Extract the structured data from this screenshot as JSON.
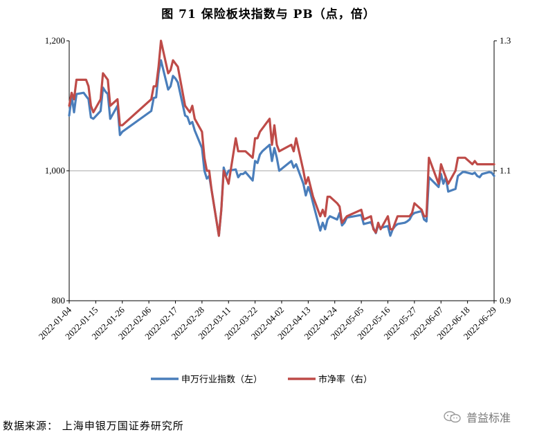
{
  "title": "图 71  保险板块指数与 PB（点，倍）",
  "source": "数据来源：   上海申银万国证券研究所",
  "watermark": "普益标准",
  "colors": {
    "index": "#4a7ebb",
    "pb": "#be4b48"
  },
  "chart_data": {
    "type": "line",
    "x_tick_labels": [
      "2022-01-04",
      "2022-01-15",
      "2022-01-26",
      "2022-02-06",
      "2022-02-17",
      "2022-02-28",
      "2022-03-11",
      "2022-03-22",
      "2022-04-02",
      "2022-04-13",
      "2022-04-24",
      "2022-05-05",
      "2022-05-16",
      "2022-05-27",
      "2022-06-07",
      "2022-06-18",
      "2022-06-29"
    ],
    "y_left": {
      "ticks": [
        "800",
        "1,000",
        "1,200"
      ],
      "range": [
        800,
        1200
      ]
    },
    "y_right": {
      "ticks": [
        "0.9",
        "1.1",
        "1.3"
      ],
      "range": [
        0.9,
        1.3
      ]
    },
    "grid_values": [
      1000
    ],
    "legend_position": "bottom",
    "series": [
      {
        "name": "申万行业指数（左）",
        "axis": "left",
        "color": "#4a7ebb",
        "points": [
          [
            "2022-01-04",
            1085
          ],
          [
            "2022-01-05",
            1115
          ],
          [
            "2022-01-06",
            1090
          ],
          [
            "2022-01-07",
            1118
          ],
          [
            "2022-01-10",
            1120
          ],
          [
            "2022-01-11",
            1115
          ],
          [
            "2022-01-12",
            1110
          ],
          [
            "2022-01-13",
            1082
          ],
          [
            "2022-01-14",
            1080
          ],
          [
            "2022-01-17",
            1092
          ],
          [
            "2022-01-18",
            1128
          ],
          [
            "2022-01-19",
            1122
          ],
          [
            "2022-01-20",
            1118
          ],
          [
            "2022-01-21",
            1080
          ],
          [
            "2022-01-24",
            1100
          ],
          [
            "2022-01-25",
            1055
          ],
          [
            "2022-01-26",
            1060
          ],
          [
            "2022-02-07",
            1092
          ],
          [
            "2022-02-08",
            1112
          ],
          [
            "2022-02-09",
            1113
          ],
          [
            "2022-02-10",
            1150
          ],
          [
            "2022-02-11",
            1170
          ],
          [
            "2022-02-14",
            1125
          ],
          [
            "2022-02-15",
            1130
          ],
          [
            "2022-02-16",
            1146
          ],
          [
            "2022-02-17",
            1142
          ],
          [
            "2022-02-18",
            1136
          ],
          [
            "2022-02-21",
            1085
          ],
          [
            "2022-02-22",
            1083
          ],
          [
            "2022-02-23",
            1072
          ],
          [
            "2022-02-24",
            1075
          ],
          [
            "2022-02-25",
            1062
          ],
          [
            "2022-02-28",
            1035
          ],
          [
            "2022-03-01",
            1000
          ],
          [
            "2022-03-02",
            988
          ],
          [
            "2022-03-03",
            992
          ],
          [
            "2022-03-04",
            970
          ],
          [
            "2022-03-07",
            900
          ],
          [
            "2022-03-08",
            940
          ],
          [
            "2022-03-09",
            1005
          ],
          [
            "2022-03-10",
            992
          ],
          [
            "2022-03-11",
            1000
          ],
          [
            "2022-03-14",
            1002
          ],
          [
            "2022-03-15",
            990
          ],
          [
            "2022-03-16",
            995
          ],
          [
            "2022-03-17",
            995
          ],
          [
            "2022-03-18",
            998
          ],
          [
            "2022-03-21",
            985
          ],
          [
            "2022-03-22",
            1015
          ],
          [
            "2022-03-23",
            1012
          ],
          [
            "2022-03-24",
            1025
          ],
          [
            "2022-03-25",
            1030
          ],
          [
            "2022-03-28",
            1040
          ],
          [
            "2022-03-29",
            1015
          ],
          [
            "2022-03-30",
            1035
          ],
          [
            "2022-03-31",
            1020
          ],
          [
            "2022-04-01",
            1000
          ],
          [
            "2022-04-06",
            1015
          ],
          [
            "2022-04-07",
            1005
          ],
          [
            "2022-04-08",
            1010
          ],
          [
            "2022-04-11",
            980
          ],
          [
            "2022-04-12",
            962
          ],
          [
            "2022-04-13",
            975
          ],
          [
            "2022-04-14",
            965
          ],
          [
            "2022-04-15",
            950
          ],
          [
            "2022-04-18",
            908
          ],
          [
            "2022-04-19",
            920
          ],
          [
            "2022-04-20",
            910
          ],
          [
            "2022-04-21",
            925
          ],
          [
            "2022-04-22",
            930
          ],
          [
            "2022-04-25",
            925
          ],
          [
            "2022-04-26",
            935
          ],
          [
            "2022-04-27",
            916
          ],
          [
            "2022-04-28",
            920
          ],
          [
            "2022-04-29",
            928
          ],
          [
            "2022-05-05",
            932
          ],
          [
            "2022-05-06",
            918
          ],
          [
            "2022-05-09",
            921
          ],
          [
            "2022-05-10",
            912
          ],
          [
            "2022-05-11",
            904
          ],
          [
            "2022-05-12",
            916
          ],
          [
            "2022-05-13",
            912
          ],
          [
            "2022-05-16",
            915
          ],
          [
            "2022-05-17",
            900
          ],
          [
            "2022-05-18",
            910
          ],
          [
            "2022-05-19",
            915
          ],
          [
            "2022-05-20",
            918
          ],
          [
            "2022-05-23",
            920
          ],
          [
            "2022-05-24",
            922
          ],
          [
            "2022-05-25",
            925
          ],
          [
            "2022-05-26",
            932
          ],
          [
            "2022-05-27",
            935
          ],
          [
            "2022-05-30",
            938
          ],
          [
            "2022-05-31",
            925
          ],
          [
            "2022-06-01",
            922
          ],
          [
            "2022-06-02",
            990
          ],
          [
            "2022-06-06",
            975
          ],
          [
            "2022-06-07",
            995
          ],
          [
            "2022-06-08",
            980
          ],
          [
            "2022-06-09",
            990
          ],
          [
            "2022-06-10",
            968
          ],
          [
            "2022-06-13",
            972
          ],
          [
            "2022-06-14",
            992
          ],
          [
            "2022-06-15",
            995
          ],
          [
            "2022-06-16",
            998
          ],
          [
            "2022-06-17",
            998
          ],
          [
            "2022-06-20",
            995
          ],
          [
            "2022-06-21",
            997
          ],
          [
            "2022-06-22",
            992
          ],
          [
            "2022-06-23",
            990
          ],
          [
            "2022-06-24",
            995
          ],
          [
            "2022-06-27",
            998
          ],
          [
            "2022-06-28",
            997
          ],
          [
            "2022-06-29",
            992
          ]
        ]
      },
      {
        "name": "市净率（右）",
        "axis": "right",
        "color": "#be4b48",
        "points": [
          [
            "2022-01-04",
            1.2
          ],
          [
            "2022-01-05",
            1.22
          ],
          [
            "2022-01-06",
            1.21
          ],
          [
            "2022-01-07",
            1.24
          ],
          [
            "2022-01-10",
            1.24
          ],
          [
            "2022-01-11",
            1.24
          ],
          [
            "2022-01-12",
            1.23
          ],
          [
            "2022-01-13",
            1.2
          ],
          [
            "2022-01-14",
            1.19
          ],
          [
            "2022-01-17",
            1.21
          ],
          [
            "2022-01-18",
            1.25
          ],
          [
            "2022-01-19",
            1.245
          ],
          [
            "2022-01-20",
            1.24
          ],
          [
            "2022-01-21",
            1.2
          ],
          [
            "2022-01-24",
            1.21
          ],
          [
            "2022-01-25",
            1.17
          ],
          [
            "2022-01-26",
            1.17
          ],
          [
            "2022-02-07",
            1.21
          ],
          [
            "2022-02-08",
            1.23
          ],
          [
            "2022-02-09",
            1.23
          ],
          [
            "2022-02-10",
            1.26
          ],
          [
            "2022-02-11",
            1.3
          ],
          [
            "2022-02-14",
            1.25
          ],
          [
            "2022-02-15",
            1.255
          ],
          [
            "2022-02-16",
            1.27
          ],
          [
            "2022-02-17",
            1.265
          ],
          [
            "2022-02-18",
            1.26
          ],
          [
            "2022-02-21",
            1.2
          ],
          [
            "2022-02-22",
            1.195
          ],
          [
            "2022-02-23",
            1.19
          ],
          [
            "2022-02-24",
            1.2
          ],
          [
            "2022-02-25",
            1.18
          ],
          [
            "2022-02-28",
            1.16
          ],
          [
            "2022-03-01",
            1.12
          ],
          [
            "2022-03-02",
            1.1
          ],
          [
            "2022-03-03",
            1.1
          ],
          [
            "2022-03-04",
            1.07
          ],
          [
            "2022-03-07",
            1.0
          ],
          [
            "2022-03-08",
            1.04
          ],
          [
            "2022-03-09",
            1.1
          ],
          [
            "2022-03-10",
            1.09
          ],
          [
            "2022-03-11",
            1.08
          ],
          [
            "2022-03-14",
            1.15
          ],
          [
            "2022-03-15",
            1.13
          ],
          [
            "2022-03-16",
            1.13
          ],
          [
            "2022-03-17",
            1.13
          ],
          [
            "2022-03-18",
            1.13
          ],
          [
            "2022-03-21",
            1.12
          ],
          [
            "2022-03-22",
            1.15
          ],
          [
            "2022-03-23",
            1.15
          ],
          [
            "2022-03-24",
            1.16
          ],
          [
            "2022-03-25",
            1.165
          ],
          [
            "2022-03-28",
            1.18
          ],
          [
            "2022-03-29",
            1.14
          ],
          [
            "2022-03-30",
            1.17
          ],
          [
            "2022-03-31",
            1.14
          ],
          [
            "2022-04-01",
            1.13
          ],
          [
            "2022-04-06",
            1.14
          ],
          [
            "2022-04-07",
            1.13
          ],
          [
            "2022-04-08",
            1.15
          ],
          [
            "2022-04-11",
            1.1
          ],
          [
            "2022-04-12",
            1.08
          ],
          [
            "2022-04-13",
            1.09
          ],
          [
            "2022-04-14",
            1.075
          ],
          [
            "2022-04-15",
            1.06
          ],
          [
            "2022-04-18",
            1.03
          ],
          [
            "2022-04-19",
            1.04
          ],
          [
            "2022-04-20",
            1.03
          ],
          [
            "2022-04-21",
            1.06
          ],
          [
            "2022-04-22",
            1.06
          ],
          [
            "2022-04-25",
            1.05
          ],
          [
            "2022-04-26",
            1.045
          ],
          [
            "2022-04-27",
            1.02
          ],
          [
            "2022-04-28",
            1.025
          ],
          [
            "2022-04-29",
            1.03
          ],
          [
            "2022-05-05",
            1.04
          ],
          [
            "2022-05-06",
            1.025
          ],
          [
            "2022-05-09",
            1.03
          ],
          [
            "2022-05-10",
            1.01
          ],
          [
            "2022-05-11",
            1.005
          ],
          [
            "2022-05-12",
            1.02
          ],
          [
            "2022-05-13",
            1.01
          ],
          [
            "2022-05-16",
            1.03
          ],
          [
            "2022-05-17",
            1.01
          ],
          [
            "2022-05-18",
            1.01
          ],
          [
            "2022-05-19",
            1.02
          ],
          [
            "2022-05-20",
            1.03
          ],
          [
            "2022-05-23",
            1.03
          ],
          [
            "2022-05-24",
            1.03
          ],
          [
            "2022-05-25",
            1.03
          ],
          [
            "2022-05-26",
            1.035
          ],
          [
            "2022-05-27",
            1.05
          ],
          [
            "2022-05-30",
            1.04
          ],
          [
            "2022-05-31",
            1.03
          ],
          [
            "2022-06-01",
            1.03
          ],
          [
            "2022-06-02",
            1.12
          ],
          [
            "2022-06-06",
            1.08
          ],
          [
            "2022-06-07",
            1.11
          ],
          [
            "2022-06-08",
            1.1
          ],
          [
            "2022-06-09",
            1.09
          ],
          [
            "2022-06-10",
            1.08
          ],
          [
            "2022-06-13",
            1.1
          ],
          [
            "2022-06-14",
            1.12
          ],
          [
            "2022-06-15",
            1.12
          ],
          [
            "2022-06-16",
            1.12
          ],
          [
            "2022-06-17",
            1.12
          ],
          [
            "2022-06-20",
            1.11
          ],
          [
            "2022-06-21",
            1.115
          ],
          [
            "2022-06-22",
            1.11
          ],
          [
            "2022-06-23",
            1.11
          ],
          [
            "2022-06-24",
            1.11
          ],
          [
            "2022-06-27",
            1.11
          ],
          [
            "2022-06-28",
            1.11
          ],
          [
            "2022-06-29",
            1.11
          ]
        ]
      }
    ]
  }
}
